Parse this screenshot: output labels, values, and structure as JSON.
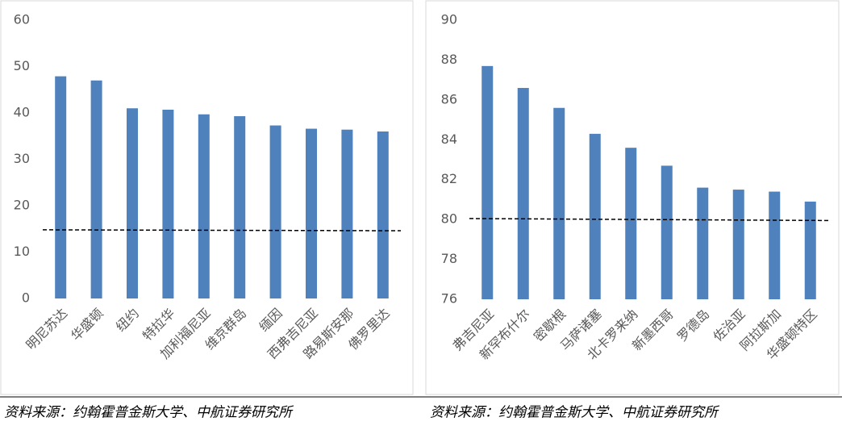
{
  "chart_data": [
    {
      "type": "bar",
      "color": "#4f81bd",
      "categories": [
        "明尼苏达",
        "华盛顿",
        "纽约",
        "特拉华",
        "加利福尼亚",
        "维京群岛",
        "缅因",
        "西弗吉尼亚",
        "路易斯安那",
        "佛罗里达"
      ],
      "values": [
        47.9,
        47,
        41,
        40.7,
        39.7,
        39.3,
        37.3,
        36.6,
        36.4,
        36
      ],
      "ylim": [
        0,
        60
      ],
      "yticks": [
        0,
        10,
        20,
        30,
        40,
        50,
        60
      ],
      "trendline": {
        "start": 14.8,
        "end": 14.6
      }
    },
    {
      "type": "bar",
      "color": "#4f81bd",
      "categories": [
        "弗吉尼亚",
        "新罕布什尔",
        "密歇根",
        "马萨诸塞",
        "北卡罗来纳",
        "新墨西哥",
        "罗德岛",
        "佐治亚",
        "阿拉斯加",
        "华盛顿特区"
      ],
      "values": [
        87.7,
        86.6,
        85.6,
        84.3,
        83.6,
        82.7,
        81.6,
        81.5,
        81.4,
        80.9
      ],
      "ylim": [
        76,
        90
      ],
      "yticks": [
        76,
        78,
        80,
        82,
        84,
        86,
        88,
        90
      ],
      "trendline": {
        "start": 80.05,
        "end": 79.95
      }
    }
  ],
  "sources": [
    "资料来源：约翰霍普金斯大学、中航证券研究所",
    "资料来源：约翰霍普金斯大学、中航证券研究所"
  ]
}
